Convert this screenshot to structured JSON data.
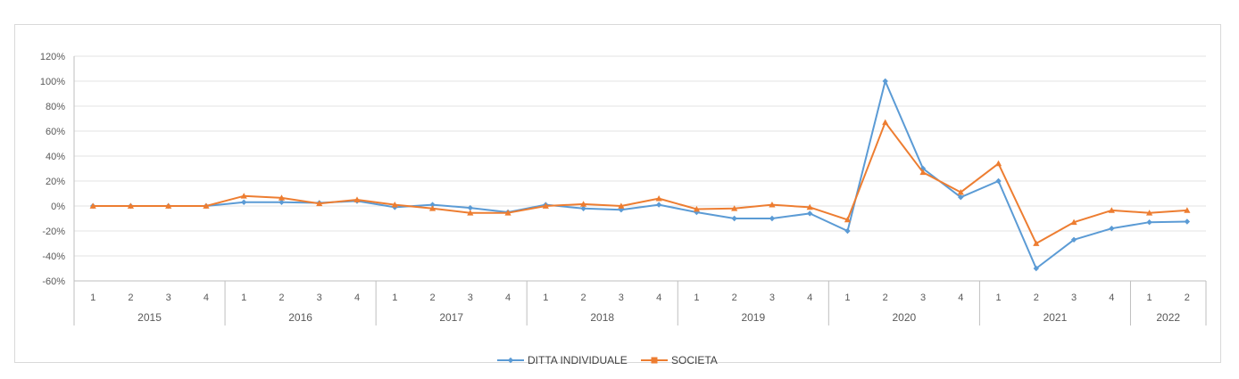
{
  "chart_data": {
    "type": "line",
    "title": "",
    "xlabel": "",
    "ylabel": "",
    "ylim": [
      -0.6,
      1.2
    ],
    "y_ticks": [
      "120%",
      "100%",
      "80%",
      "60%",
      "40%",
      "20%",
      "0%",
      "-20%",
      "-40%",
      "-60%"
    ],
    "grid": true,
    "legend_position": "bottom",
    "years": [
      {
        "label": "2015",
        "quarters": [
          "1",
          "2",
          "3",
          "4"
        ]
      },
      {
        "label": "2016",
        "quarters": [
          "1",
          "2",
          "3",
          "4"
        ]
      },
      {
        "label": "2017",
        "quarters": [
          "1",
          "2",
          "3",
          "4"
        ]
      },
      {
        "label": "2018",
        "quarters": [
          "1",
          "2",
          "3",
          "4"
        ]
      },
      {
        "label": "2019",
        "quarters": [
          "1",
          "2",
          "3",
          "4"
        ]
      },
      {
        "label": "2020",
        "quarters": [
          "1",
          "2",
          "3",
          "4"
        ]
      },
      {
        "label": "2021",
        "quarters": [
          "1",
          "2",
          "3",
          "4"
        ]
      },
      {
        "label": "2022",
        "quarters": [
          "1",
          "2"
        ]
      }
    ],
    "series": [
      {
        "name": "DITTA INDIVIDUALE",
        "color": "#5b9bd5",
        "marker": "diamond",
        "values": [
          0,
          0,
          0,
          0,
          0.03,
          0.03,
          0.025,
          0.04,
          -0.01,
          0.01,
          -0.015,
          -0.05,
          0.01,
          -0.02,
          -0.03,
          0.01,
          -0.05,
          -0.1,
          -0.1,
          -0.06,
          -0.2,
          1.0,
          0.3,
          0.07,
          0.2,
          -0.5,
          -0.27,
          -0.18,
          -0.13,
          -0.125
        ]
      },
      {
        "name": "SOCIETA",
        "color": "#ed7d31",
        "marker": "triangle",
        "values": [
          0,
          0,
          0,
          0,
          0.08,
          0.065,
          0.02,
          0.05,
          0.01,
          -0.02,
          -0.055,
          -0.055,
          0,
          0.015,
          0,
          0.06,
          -0.025,
          -0.02,
          0.01,
          -0.01,
          -0.11,
          0.67,
          0.27,
          0.11,
          0.34,
          -0.3,
          -0.13,
          -0.035,
          -0.055,
          -0.035
        ]
      }
    ]
  }
}
